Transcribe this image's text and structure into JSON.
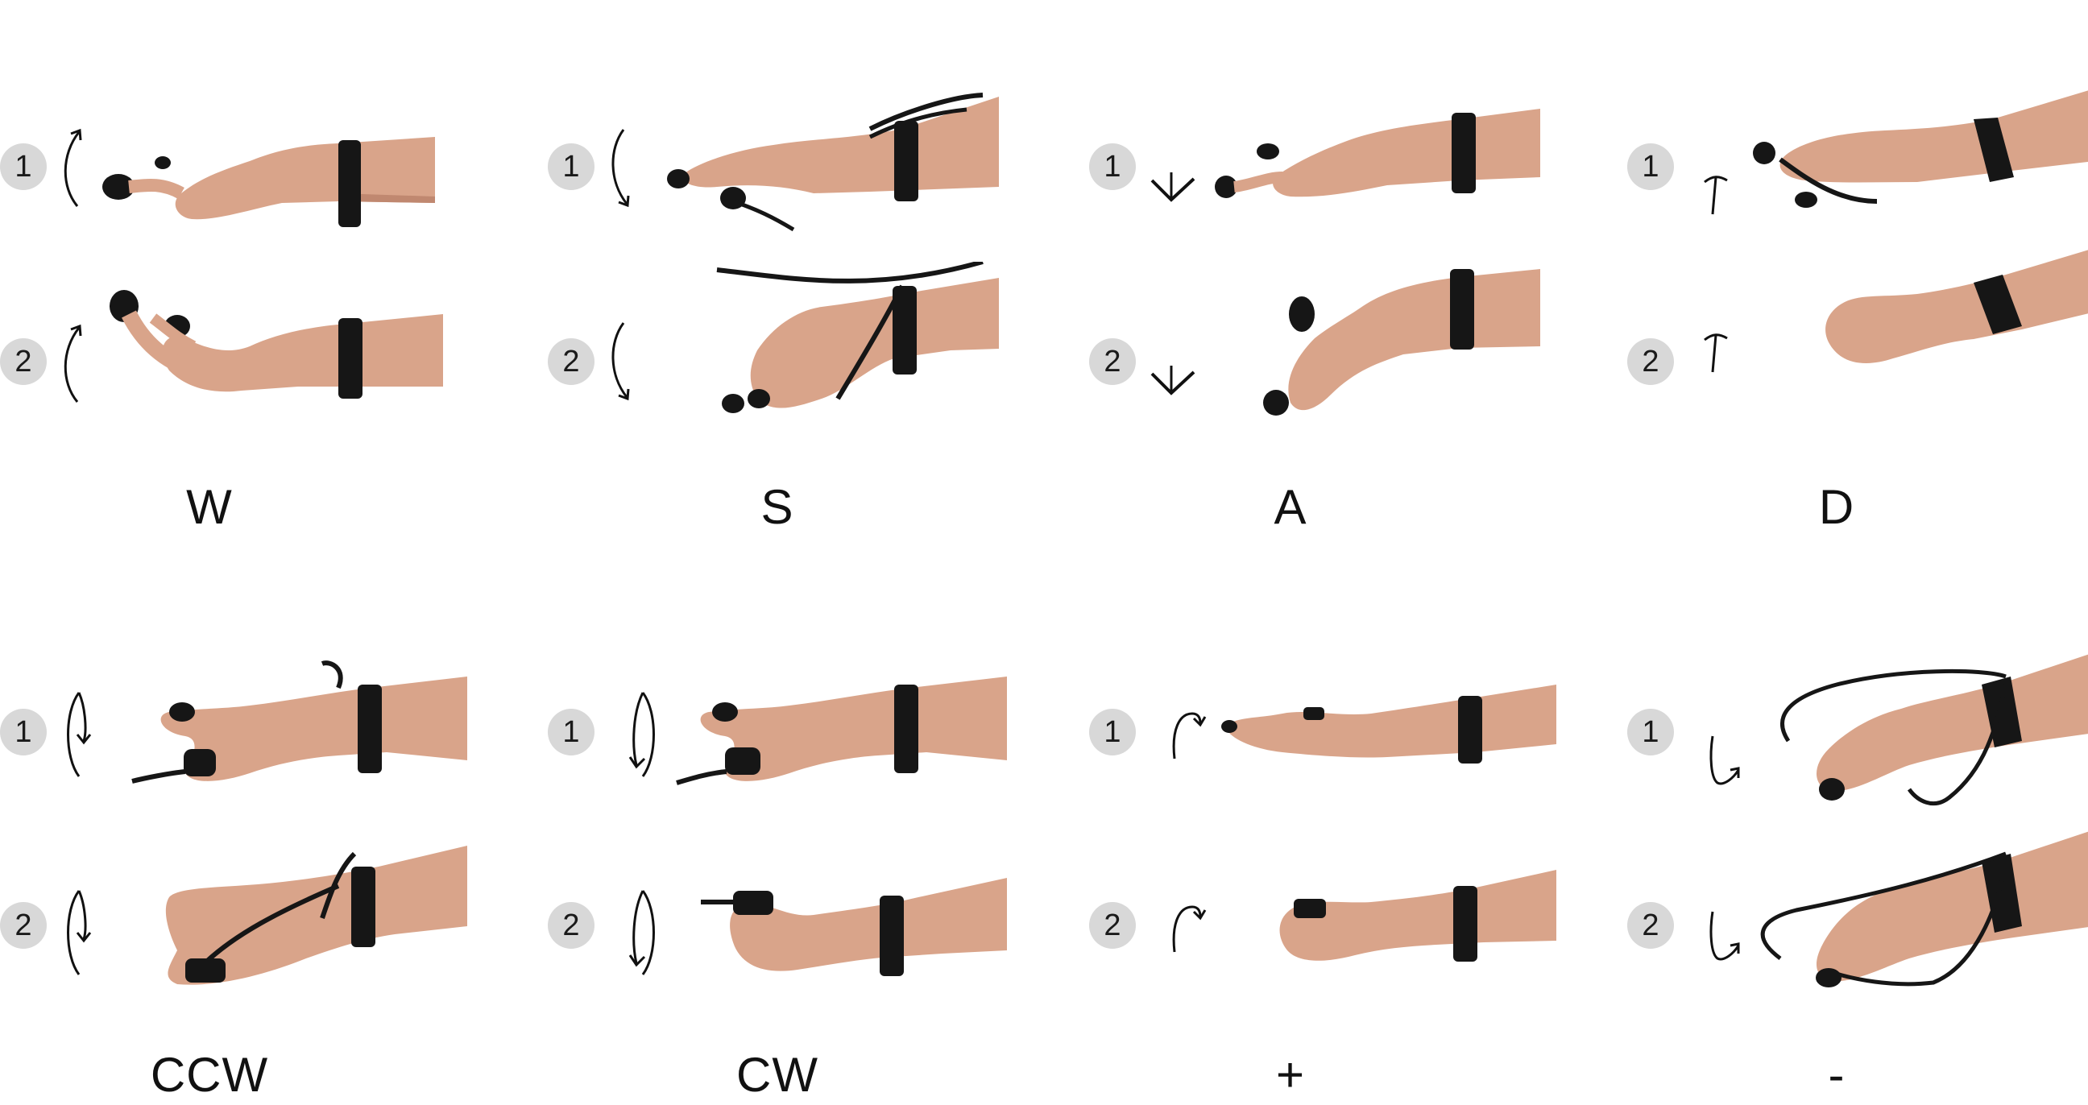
{
  "gestures": [
    {
      "label": "W",
      "step1": "1",
      "step2": "2",
      "icon": "curved-arrow-up-icon"
    },
    {
      "label": "S",
      "step1": "1",
      "step2": "2",
      "icon": "curved-arrow-down-icon"
    },
    {
      "label": "A",
      "step1": "1",
      "step2": "2",
      "icon": "chevron-down-icon"
    },
    {
      "label": "D",
      "step1": "1",
      "step2": "2",
      "icon": "arrow-up-bar-icon"
    },
    {
      "label": "CCW",
      "step1": "1",
      "step2": "2",
      "icon": "rotate-ccw-icon"
    },
    {
      "label": "CW",
      "step1": "1",
      "step2": "2",
      "icon": "rotate-cw-icon"
    },
    {
      "label": "+",
      "step1": "1",
      "step2": "2",
      "icon": "hook-arrow-right-icon"
    },
    {
      "label": "-",
      "step1": "1",
      "step2": "2",
      "icon": "hook-arrow-down-right-icon"
    }
  ],
  "colors": {
    "badge": "#d8d8d8",
    "skin": "#d9a48a",
    "skin_shade": "#c08870",
    "band": "#161616",
    "text": "#111111"
  }
}
